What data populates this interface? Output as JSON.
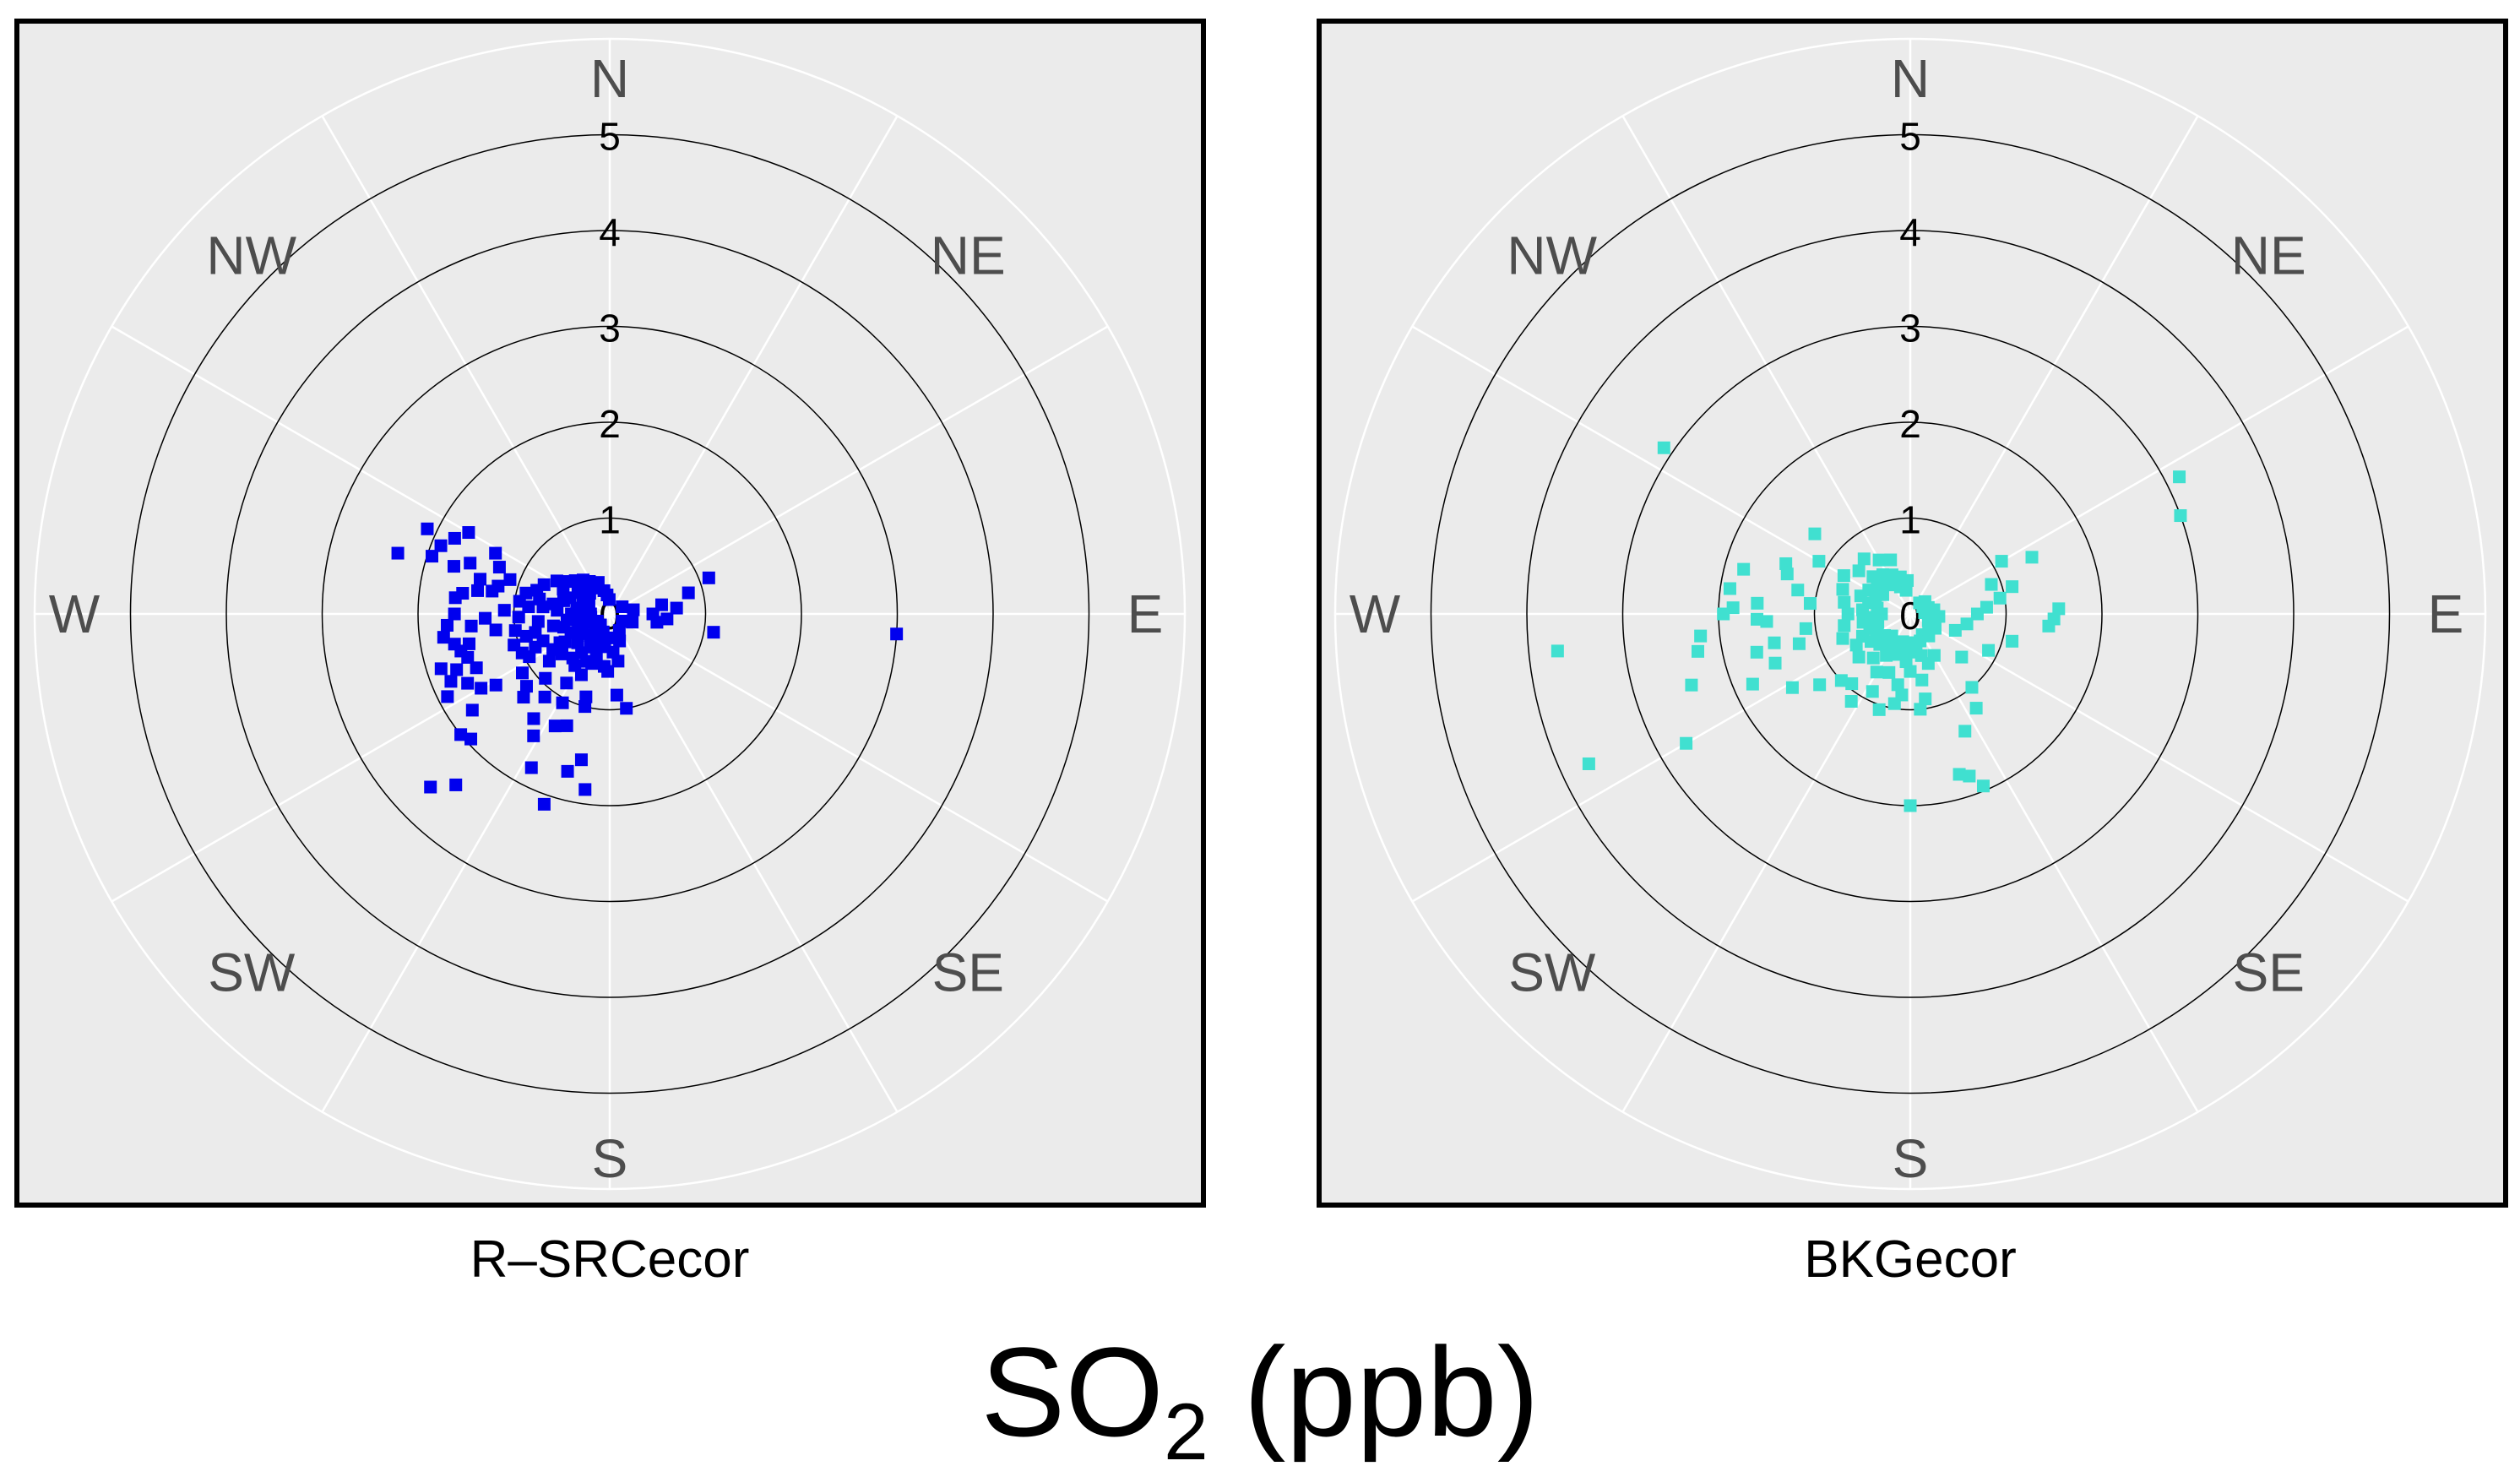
{
  "figure": {
    "title_main": "SO",
    "title_subscript": "2",
    "title_unit": " (ppb)"
  },
  "chart_data": [
    {
      "type": "scatter",
      "coordinate_system": "polar",
      "panel_label": "R–SRCecor",
      "direction_labels": [
        "N",
        "NE",
        "E",
        "SE",
        "S",
        "SW",
        "W",
        "NW"
      ],
      "radial_ticks": [
        "0",
        "1",
        "2",
        "3",
        "4",
        "5"
      ],
      "radial_range": [
        0,
        5
      ],
      "grid": true,
      "colors": {
        "marker": "#0000ee",
        "panel_bg": "#ebebeb",
        "ring": "#000000",
        "spoke": "#ffffff"
      },
      "points": [
        [
          275,
          0.85
        ],
        [
          272,
          1.1
        ],
        [
          268,
          1.3
        ],
        [
          281,
          1.25
        ],
        [
          285,
          1.4
        ],
        [
          290,
          1.55
        ],
        [
          287,
          1.7
        ],
        [
          278,
          1.55
        ],
        [
          262,
          1.2
        ],
        [
          255,
          0.9
        ],
        [
          248,
          0.75
        ],
        [
          240,
          0.6
        ],
        [
          232,
          0.8
        ],
        [
          225,
          0.95
        ],
        [
          218,
          1.1
        ],
        [
          212,
          0.85
        ],
        [
          205,
          0.7
        ],
        [
          200,
          0.55
        ],
        [
          196,
          0.9
        ],
        [
          208,
          1.05
        ],
        [
          229,
          1.15
        ],
        [
          246,
          1.0
        ],
        [
          258,
          1.5
        ],
        [
          265,
          1.45
        ],
        [
          270,
          1.62
        ],
        [
          266,
          1.7
        ],
        [
          262,
          1.75
        ],
        [
          259,
          1.65
        ],
        [
          256,
          1.6
        ],
        [
          252,
          1.85
        ],
        [
          250,
          1.7
        ],
        [
          253,
          1.55
        ],
        [
          248,
          1.5
        ],
        [
          244,
          1.65
        ],
        [
          247,
          1.8
        ],
        [
          243,
          1.9
        ],
        [
          276,
          1.62
        ],
        [
          280,
          1.4
        ],
        [
          284,
          1.2
        ],
        [
          289,
          1.1
        ],
        [
          293,
          1.25
        ],
        [
          298,
          1.35
        ],
        [
          300,
          1.7
        ],
        [
          296,
          1.8
        ],
        [
          292,
          1.9
        ],
        [
          295,
          2.1
        ],
        [
          288,
          1.95
        ],
        [
          286,
          2.3
        ],
        [
          240,
          1.55
        ],
        [
          238,
          1.4
        ],
        [
          235,
          1.75
        ],
        [
          231,
          2.0
        ],
        [
          228,
          1.95
        ],
        [
          226,
          2.6
        ],
        [
          222,
          2.4
        ],
        [
          207,
          1.8
        ],
        [
          199,
          2.1
        ],
        [
          195,
          1.7
        ],
        [
          191,
          1.55
        ],
        [
          188,
          1.85
        ],
        [
          274,
          0.55
        ],
        [
          270,
          0.4
        ],
        [
          266,
          0.3
        ],
        [
          262,
          0.45
        ],
        [
          258,
          0.6
        ],
        [
          254,
          0.5
        ],
        [
          250,
          0.35
        ],
        [
          244,
          0.45
        ],
        [
          238,
          0.55
        ],
        [
          234,
          0.35
        ],
        [
          228,
          0.45
        ],
        [
          222,
          0.3
        ],
        [
          216,
          0.5
        ],
        [
          210,
          0.4
        ],
        [
          204,
          0.3
        ],
        [
          198,
          0.45
        ],
        [
          192,
          0.35
        ],
        [
          186,
          0.55
        ],
        [
          280,
          0.6
        ],
        [
          286,
          0.5
        ],
        [
          292,
          0.45
        ],
        [
          298,
          0.55
        ],
        [
          304,
          0.4
        ],
        [
          310,
          0.35
        ],
        [
          316,
          0.3
        ],
        [
          322,
          0.45
        ],
        [
          328,
          0.4
        ],
        [
          334,
          0.3
        ],
        [
          340,
          0.35
        ],
        [
          346,
          0.25
        ],
        [
          352,
          0.2
        ],
        [
          358,
          0.15
        ],
        [
          270,
          0.2
        ],
        [
          250,
          0.25
        ],
        [
          230,
          0.2
        ],
        [
          210,
          0.25
        ],
        [
          190,
          0.3
        ],
        [
          282,
          0.75
        ],
        [
          276,
          0.7
        ],
        [
          264,
          0.75
        ],
        [
          256,
          0.8
        ],
        [
          246,
          0.85
        ],
        [
          238,
          0.7
        ],
        [
          230,
          0.65
        ],
        [
          220,
          0.6
        ],
        [
          214,
          0.65
        ],
        [
          206,
          0.55
        ],
        [
          278,
          0.95
        ],
        [
          268,
          0.95
        ],
        [
          260,
          1.0
        ],
        [
          252,
          1.05
        ],
        [
          242,
          0.95
        ],
        [
          236,
          1.1
        ],
        [
          226,
          1.25
        ],
        [
          216,
          1.35
        ],
        [
          212,
          1.5
        ],
        [
          206,
          1.3
        ],
        [
          201,
          1.25
        ],
        [
          288,
          0.8
        ],
        [
          294,
          0.75
        ],
        [
          302,
          0.65
        ],
        [
          308,
          0.55
        ],
        [
          314,
          0.5
        ],
        [
          284,
          0.9
        ],
        [
          280,
          0.35
        ],
        [
          290,
          0.3
        ],
        [
          300,
          0.25
        ],
        [
          260,
          0.2
        ],
        [
          240,
          0.15
        ],
        [
          220,
          0.15
        ],
        [
          200,
          0.2
        ],
        [
          180,
          0.25
        ],
        [
          60,
          0.15
        ],
        [
          80,
          0.25
        ],
        [
          90,
          0.45
        ],
        [
          95,
          0.6
        ],
        [
          100,
          0.5
        ],
        [
          85,
          0.7
        ],
        [
          80,
          0.55
        ],
        [
          75,
          0.85
        ],
        [
          70,
          1.1
        ],
        [
          100,
          1.1
        ],
        [
          94,
          3.0
        ],
        [
          175,
          0.4
        ],
        [
          170,
          0.5
        ],
        [
          160,
          0.3
        ],
        [
          150,
          0.2
        ],
        [
          120,
          0.15
        ],
        [
          110,
          0.25
        ],
        [
          170,
          1.0
        ],
        [
          195,
          1.0
        ],
        [
          175,
          0.85
        ],
        [
          182,
          0.6
        ]
      ]
    },
    {
      "type": "scatter",
      "coordinate_system": "polar",
      "panel_label": "BKGecor",
      "direction_labels": [
        "N",
        "NE",
        "E",
        "SE",
        "S",
        "SW",
        "W",
        "NW"
      ],
      "radial_ticks": [
        "0",
        "1",
        "2",
        "3",
        "4",
        "5"
      ],
      "radial_range": [
        0,
        5
      ],
      "grid": true,
      "colors": {
        "marker": "#40e0d0",
        "panel_bg": "#ebebeb",
        "ring": "#000000",
        "spoke": "#ffffff"
      },
      "points": [
        [
          270,
          0.3
        ],
        [
          265,
          0.4
        ],
        [
          275,
          0.5
        ],
        [
          280,
          0.35
        ],
        [
          285,
          0.45
        ],
        [
          290,
          0.55
        ],
        [
          295,
          0.4
        ],
        [
          300,
          0.5
        ],
        [
          305,
          0.35
        ],
        [
          310,
          0.45
        ],
        [
          315,
          0.55
        ],
        [
          320,
          0.4
        ],
        [
          325,
          0.5
        ],
        [
          330,
          0.35
        ],
        [
          335,
          0.45
        ],
        [
          340,
          0.3
        ],
        [
          345,
          0.4
        ],
        [
          350,
          0.25
        ],
        [
          355,
          0.35
        ],
        [
          260,
          0.5
        ],
        [
          255,
          0.35
        ],
        [
          250,
          0.45
        ],
        [
          245,
          0.55
        ],
        [
          240,
          0.4
        ],
        [
          235,
          0.5
        ],
        [
          230,
          0.35
        ],
        [
          225,
          0.45
        ],
        [
          220,
          0.3
        ],
        [
          215,
          0.4
        ],
        [
          210,
          0.5
        ],
        [
          205,
          0.35
        ],
        [
          200,
          0.45
        ],
        [
          195,
          0.3
        ],
        [
          190,
          0.4
        ],
        [
          185,
          0.5
        ],
        [
          180,
          0.3
        ],
        [
          175,
          0.4
        ],
        [
          170,
          0.35
        ],
        [
          165,
          0.45
        ],
        [
          160,
          0.3
        ],
        [
          150,
          0.25
        ],
        [
          140,
          0.3
        ],
        [
          130,
          0.25
        ],
        [
          120,
          0.3
        ],
        [
          110,
          0.2
        ],
        [
          100,
          0.25
        ],
        [
          95,
          0.3
        ],
        [
          90,
          0.2
        ],
        [
          85,
          0.15
        ],
        [
          80,
          0.25
        ],
        [
          70,
          0.2
        ],
        [
          60,
          0.15
        ],
        [
          50,
          0.2
        ],
        [
          40,
          0.15
        ],
        [
          270,
          0.65
        ],
        [
          280,
          0.7
        ],
        [
          290,
          0.75
        ],
        [
          300,
          0.8
        ],
        [
          310,
          0.7
        ],
        [
          320,
          0.75
        ],
        [
          330,
          0.65
        ],
        [
          340,
          0.6
        ],
        [
          260,
          0.7
        ],
        [
          250,
          0.75
        ],
        [
          240,
          0.65
        ],
        [
          230,
          0.7
        ],
        [
          220,
          0.6
        ],
        [
          210,
          0.7
        ],
        [
          200,
          0.65
        ],
        [
          190,
          0.75
        ],
        [
          180,
          0.6
        ],
        [
          170,
          0.7
        ],
        [
          160,
          0.55
        ],
        [
          150,
          0.5
        ],
        [
          110,
          0.5
        ],
        [
          100,
          0.6
        ],
        [
          90,
          0.7
        ],
        [
          85,
          0.8
        ],
        [
          80,
          0.95
        ],
        [
          75,
          1.1
        ],
        [
          70,
          0.9
        ],
        [
          60,
          1.1
        ],
        [
          65,
          1.4
        ],
        [
          95,
          1.45
        ],
        [
          92,
          1.5
        ],
        [
          88,
          1.55
        ],
        [
          105,
          1.1
        ],
        [
          115,
          0.9
        ],
        [
          130,
          0.7
        ],
        [
          140,
          1.0
        ],
        [
          145,
          1.2
        ],
        [
          155,
          1.35
        ],
        [
          160,
          1.8
        ],
        [
          157,
          1.95
        ],
        [
          163,
          1.75
        ],
        [
          180,
          2.0
        ],
        [
          70,
          3.0
        ],
        [
          63,
          3.15
        ],
        [
          282,
          1.2
        ],
        [
          288,
          1.35
        ],
        [
          300,
          1.1
        ],
        [
          276,
          1.05
        ],
        [
          255,
          1.2
        ],
        [
          262,
          1.1
        ],
        [
          250,
          1.5
        ],
        [
          258,
          1.45
        ],
        [
          268,
          1.6
        ],
        [
          272,
          1.85
        ],
        [
          264,
          2.2
        ],
        [
          260,
          2.25
        ],
        [
          252,
          2.4
        ],
        [
          240,
          2.7
        ],
        [
          264,
          3.7
        ],
        [
          245,
          3.7
        ],
        [
          292,
          1.4
        ],
        [
          310,
          1.3
        ],
        [
          304,
          3.1
        ],
        [
          285,
          1.8
        ],
        [
          270,
          1.95
        ],
        [
          278,
          1.9
        ],
        [
          274,
          1.6
        ],
        [
          267,
          1.5
        ],
        [
          256,
          1.65
        ],
        [
          246,
          1.8
        ],
        [
          238,
          1.45
        ],
        [
          232,
          1.2
        ],
        [
          226,
          1.0
        ],
        [
          220,
          0.95
        ],
        [
          214,
          1.1
        ],
        [
          206,
          0.9
        ],
        [
          198,
          1.05
        ],
        [
          190,
          0.95
        ],
        [
          186,
          0.85
        ],
        [
          174,
          1.0
        ],
        [
          170,
          0.9
        ]
      ]
    }
  ]
}
